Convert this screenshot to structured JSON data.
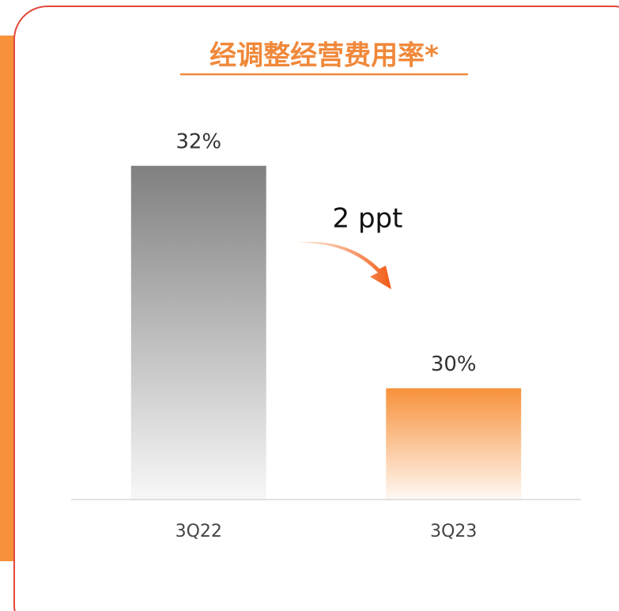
{
  "chart_data": {
    "type": "bar",
    "title": "经调整经营费用率*",
    "categories": [
      "3Q22",
      "3Q23"
    ],
    "values": [
      32,
      30
    ],
    "value_labels": [
      "32%",
      "30%"
    ],
    "colors": [
      "#808080",
      "#f7913a"
    ],
    "annotation": "2 ppt",
    "ylim": [
      29,
      33
    ]
  }
}
